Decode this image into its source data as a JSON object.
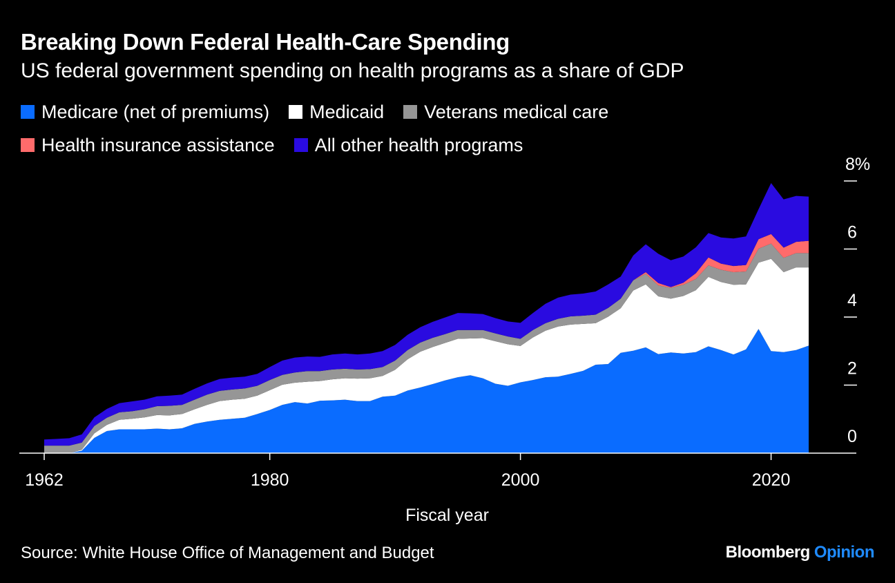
{
  "chart_data": {
    "type": "area",
    "stacked": true,
    "title": "Breaking Down Federal Health-Care Spending",
    "subtitle": "US federal government spending on health programs as a share of GDP",
    "xlabel": "Fiscal year",
    "ylabel": "",
    "x_ticks": [
      "1962",
      "1980",
      "2000",
      "2020"
    ],
    "y_ticks": [
      "0",
      "2",
      "4",
      "6",
      "8%"
    ],
    "xlim": [
      1962,
      2023
    ],
    "ylim": [
      0,
      8
    ],
    "legend_position": "top-left",
    "source": "Source: White House Office of Management and Budget",
    "brand": {
      "name": "Bloomberg",
      "suffix": "Opinion"
    },
    "x": [
      1962,
      1963,
      1964,
      1965,
      1966,
      1967,
      1968,
      1969,
      1970,
      1971,
      1972,
      1973,
      1974,
      1975,
      1976,
      1977,
      1978,
      1979,
      1980,
      1981,
      1982,
      1983,
      1984,
      1985,
      1986,
      1987,
      1988,
      1989,
      1990,
      1991,
      1992,
      1993,
      1994,
      1995,
      1996,
      1997,
      1998,
      1999,
      2000,
      2001,
      2002,
      2003,
      2004,
      2005,
      2006,
      2007,
      2008,
      2009,
      2010,
      2011,
      2012,
      2013,
      2014,
      2015,
      2016,
      2017,
      2018,
      2019,
      2020,
      2021,
      2022,
      2023
    ],
    "series": [
      {
        "name": "Medicare (net of premiums)",
        "color": "#0a6cff",
        "values": [
          0,
          0,
          0,
          0.07,
          0.45,
          0.65,
          0.7,
          0.7,
          0.7,
          0.72,
          0.7,
          0.73,
          0.86,
          0.93,
          0.98,
          1.01,
          1.04,
          1.15,
          1.27,
          1.42,
          1.5,
          1.46,
          1.54,
          1.55,
          1.57,
          1.53,
          1.53,
          1.66,
          1.69,
          1.84,
          1.93,
          2.03,
          2.14,
          2.23,
          2.29,
          2.2,
          2.04,
          1.98,
          2.08,
          2.15,
          2.23,
          2.25,
          2.33,
          2.42,
          2.6,
          2.62,
          2.95,
          3.01,
          3.11,
          2.91,
          2.96,
          2.93,
          2.97,
          3.14,
          3.03,
          2.9,
          3.05,
          3.65,
          3.0,
          2.97,
          3.03,
          3.16
        ]
      },
      {
        "name": "Medicaid",
        "color": "#ffffff",
        "values": [
          0,
          0,
          0,
          0.03,
          0.13,
          0.18,
          0.28,
          0.31,
          0.35,
          0.4,
          0.41,
          0.42,
          0.43,
          0.49,
          0.55,
          0.56,
          0.56,
          0.54,
          0.58,
          0.59,
          0.57,
          0.64,
          0.58,
          0.62,
          0.63,
          0.66,
          0.67,
          0.61,
          0.76,
          0.92,
          1.05,
          1.09,
          1.1,
          1.13,
          1.08,
          1.18,
          1.25,
          1.22,
          1.07,
          1.25,
          1.37,
          1.47,
          1.45,
          1.38,
          1.22,
          1.39,
          1.31,
          1.77,
          1.85,
          1.7,
          1.58,
          1.69,
          1.82,
          2.04,
          2.0,
          2.05,
          1.91,
          1.95,
          2.71,
          2.35,
          2.43,
          2.3
        ]
      },
      {
        "name": "Veterans medical care",
        "color": "#969696",
        "values": [
          0.22,
          0.22,
          0.22,
          0.21,
          0.22,
          0.21,
          0.22,
          0.22,
          0.24,
          0.26,
          0.28,
          0.27,
          0.28,
          0.3,
          0.3,
          0.3,
          0.3,
          0.29,
          0.3,
          0.29,
          0.3,
          0.31,
          0.29,
          0.29,
          0.28,
          0.27,
          0.27,
          0.26,
          0.27,
          0.27,
          0.27,
          0.27,
          0.26,
          0.26,
          0.25,
          0.24,
          0.23,
          0.23,
          0.21,
          0.22,
          0.22,
          0.23,
          0.24,
          0.24,
          0.25,
          0.26,
          0.28,
          0.3,
          0.31,
          0.32,
          0.32,
          0.33,
          0.33,
          0.34,
          0.36,
          0.37,
          0.38,
          0.41,
          0.45,
          0.42,
          0.42,
          0.42
        ]
      },
      {
        "name": "Health insurance assistance",
        "color": "#ff6b6b",
        "values": [
          0,
          0,
          0,
          0,
          0,
          0,
          0,
          0,
          0,
          0,
          0,
          0,
          0,
          0,
          0,
          0,
          0,
          0,
          0,
          0,
          0,
          0,
          0,
          0,
          0,
          0,
          0,
          0,
          0,
          0,
          0,
          0,
          0,
          0,
          0,
          0,
          0,
          0,
          0,
          0,
          0,
          0,
          0,
          0,
          0,
          0,
          0,
          0,
          0.05,
          0.07,
          0.02,
          0.06,
          0.17,
          0.23,
          0.18,
          0.18,
          0.19,
          0.28,
          0.28,
          0.3,
          0.33,
          0.36
        ]
      },
      {
        "name": "All other health programs",
        "color": "#2a0be0",
        "values": [
          0.18,
          0.2,
          0.22,
          0.24,
          0.25,
          0.26,
          0.27,
          0.29,
          0.28,
          0.29,
          0.3,
          0.3,
          0.32,
          0.33,
          0.35,
          0.35,
          0.35,
          0.35,
          0.38,
          0.42,
          0.44,
          0.43,
          0.42,
          0.44,
          0.45,
          0.44,
          0.46,
          0.47,
          0.46,
          0.45,
          0.45,
          0.47,
          0.49,
          0.5,
          0.49,
          0.47,
          0.45,
          0.44,
          0.47,
          0.5,
          0.57,
          0.62,
          0.64,
          0.65,
          0.68,
          0.69,
          0.65,
          0.73,
          0.82,
          0.86,
          0.79,
          0.77,
          0.76,
          0.72,
          0.77,
          0.81,
          0.84,
          0.88,
          1.5,
          1.42,
          1.35,
          1.3
        ]
      }
    ]
  }
}
